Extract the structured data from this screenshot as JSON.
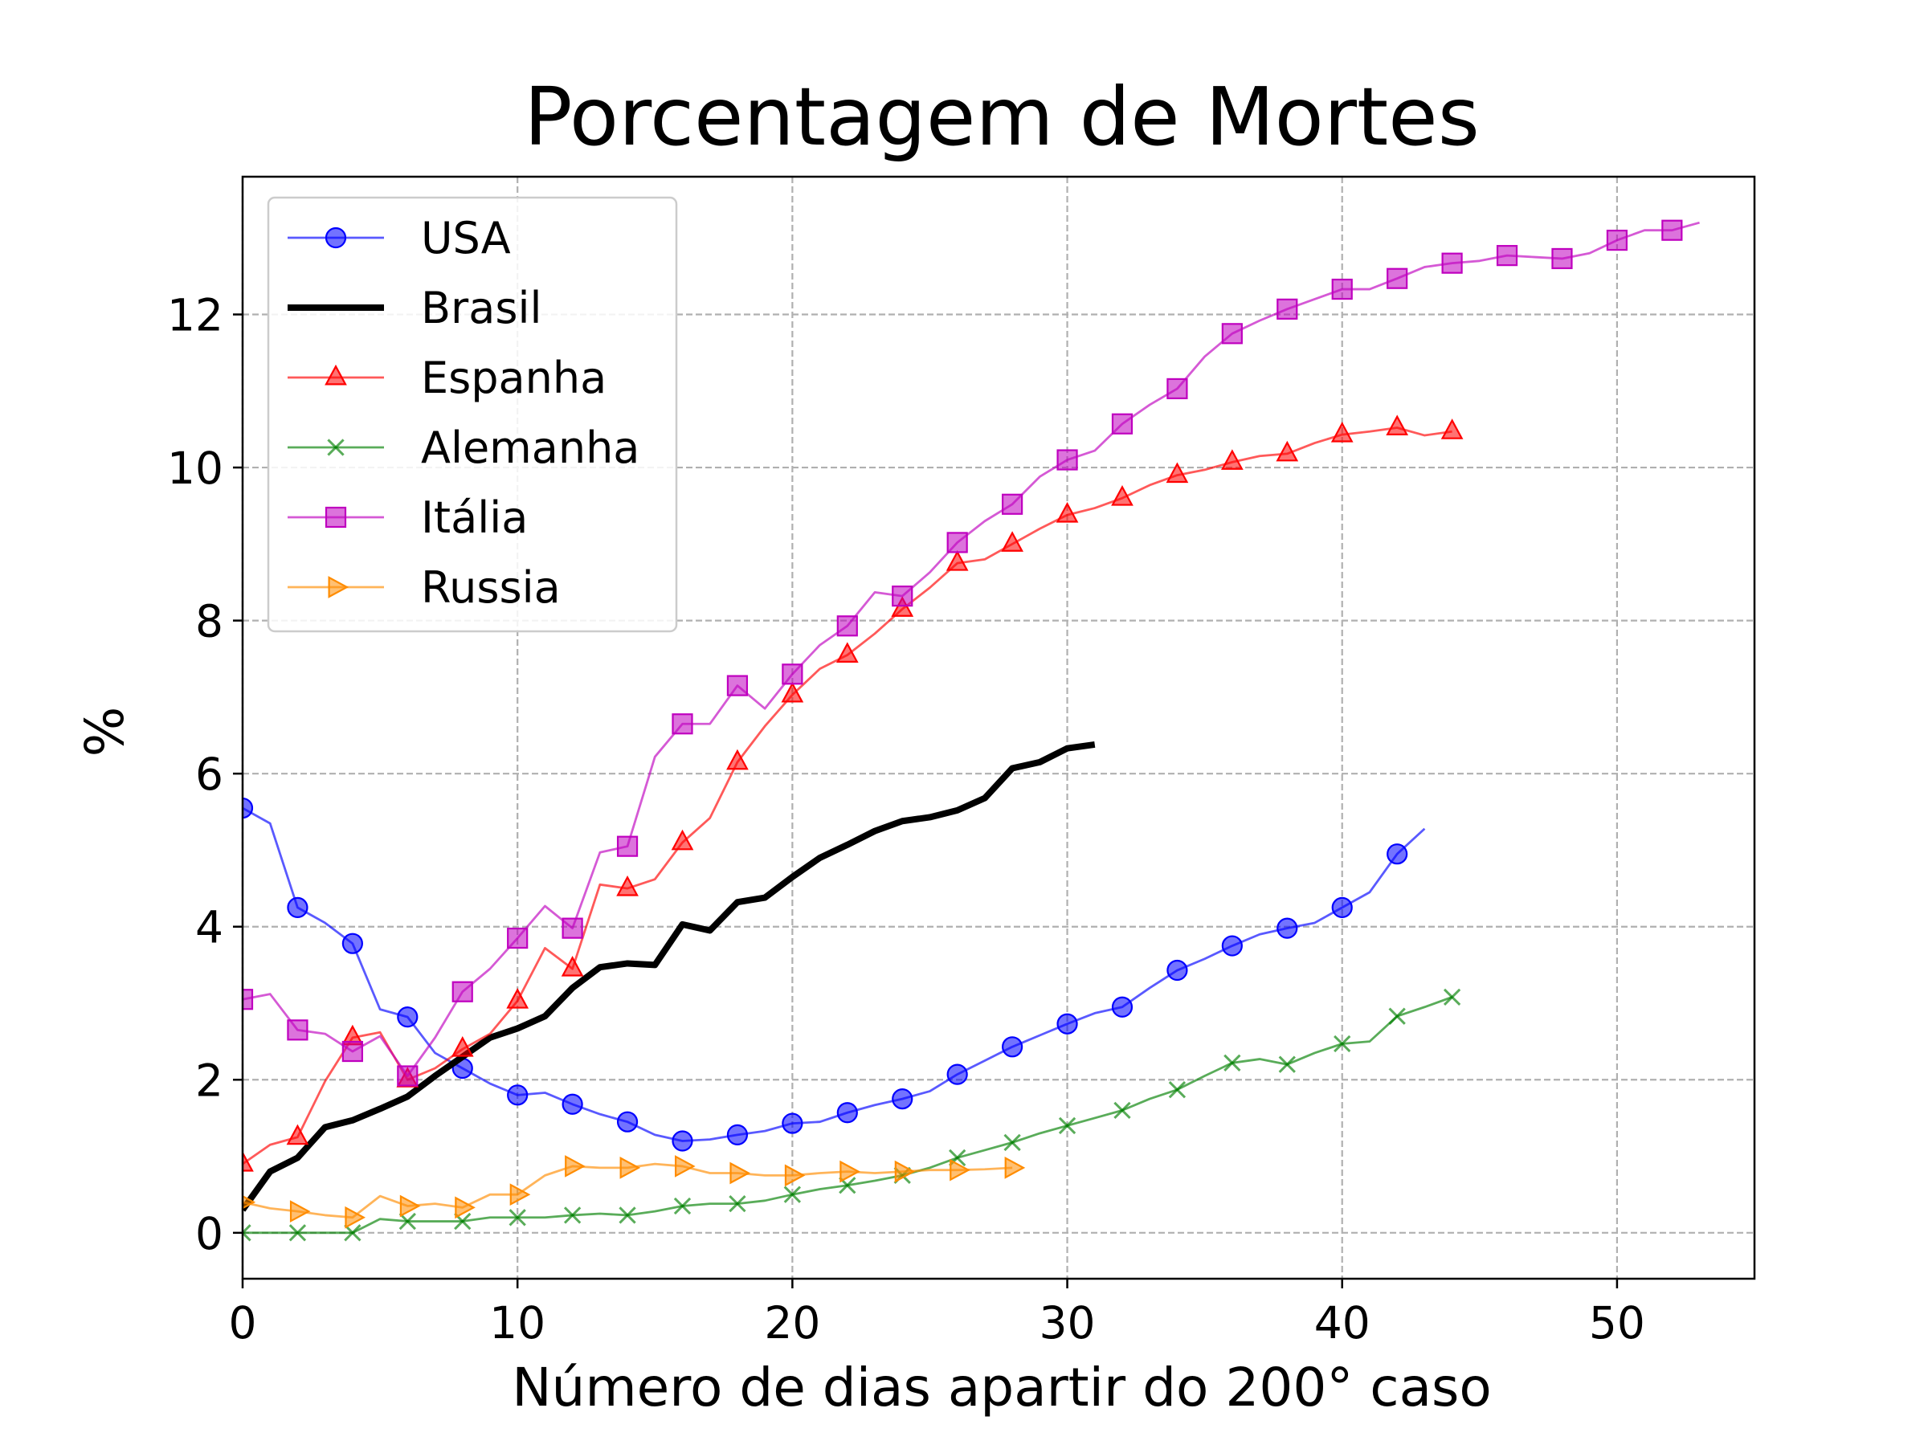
{
  "chart_data": {
    "type": "line",
    "title": "Porcentagem de Mortes",
    "xlabel": "Número de dias apartir do 200° caso",
    "ylabel": "%",
    "xlim": [
      0,
      55
    ],
    "ylim": [
      -0.6,
      13.8
    ],
    "xticks": [
      0,
      10,
      20,
      30,
      40,
      50
    ],
    "yticks": [
      0,
      2,
      4,
      6,
      8,
      10,
      12
    ],
    "grid": true,
    "legend_position": "top-left",
    "series": [
      {
        "name": "USA",
        "color": "#0000ff",
        "marker": "circle",
        "linewidth": "thin",
        "x": [
          0,
          1,
          2,
          3,
          4,
          5,
          6,
          7,
          8,
          9,
          10,
          11,
          12,
          13,
          14,
          15,
          16,
          17,
          18,
          19,
          20,
          21,
          22,
          23,
          24,
          25,
          26,
          27,
          28,
          29,
          30,
          31,
          32,
          33,
          34,
          35,
          36,
          37,
          38,
          39,
          40,
          41,
          42,
          43
        ],
        "y": [
          5.55,
          5.35,
          4.25,
          4.05,
          3.78,
          2.92,
          2.82,
          2.35,
          2.15,
          1.95,
          1.8,
          1.83,
          1.68,
          1.55,
          1.45,
          1.28,
          1.2,
          1.22,
          1.28,
          1.33,
          1.43,
          1.45,
          1.57,
          1.67,
          1.75,
          1.85,
          2.07,
          2.25,
          2.43,
          2.58,
          2.73,
          2.87,
          2.95,
          3.2,
          3.43,
          3.58,
          3.75,
          3.9,
          3.98,
          4.05,
          4.25,
          4.45,
          4.95,
          5.28
        ]
      },
      {
        "name": "Brasil",
        "color": "#000000",
        "marker": "none",
        "linewidth": "thick",
        "x": [
          0,
          1,
          2,
          3,
          4,
          5,
          6,
          7,
          8,
          9,
          10,
          11,
          12,
          13,
          14,
          15,
          16,
          17,
          18,
          19,
          20,
          21,
          22,
          23,
          24,
          25,
          26,
          27,
          28,
          29,
          30,
          31
        ],
        "y": [
          0.3,
          0.8,
          0.98,
          1.38,
          1.47,
          1.62,
          1.78,
          2.05,
          2.3,
          2.55,
          2.67,
          2.83,
          3.2,
          3.47,
          3.52,
          3.5,
          4.03,
          3.95,
          4.32,
          4.38,
          4.65,
          4.9,
          5.07,
          5.25,
          5.38,
          5.43,
          5.52,
          5.68,
          6.07,
          6.15,
          6.33,
          6.38
        ]
      },
      {
        "name": "Espanha",
        "color": "#ff0000",
        "marker": "triangle-up",
        "linewidth": "thin",
        "x": [
          0,
          1,
          2,
          3,
          4,
          5,
          6,
          7,
          8,
          9,
          10,
          11,
          12,
          13,
          14,
          15,
          16,
          17,
          18,
          19,
          20,
          21,
          22,
          23,
          24,
          25,
          26,
          27,
          28,
          29,
          30,
          31,
          32,
          33,
          34,
          35,
          36,
          37,
          38,
          39,
          40,
          41,
          42,
          43,
          44
        ],
        "y": [
          0.9,
          1.15,
          1.25,
          1.98,
          2.55,
          2.62,
          2.0,
          2.15,
          2.4,
          2.6,
          3.03,
          3.72,
          3.45,
          4.55,
          4.5,
          4.62,
          5.1,
          5.42,
          6.15,
          6.62,
          7.03,
          7.37,
          7.55,
          7.83,
          8.15,
          8.43,
          8.75,
          8.8,
          9.0,
          9.2,
          9.38,
          9.47,
          9.6,
          9.77,
          9.9,
          9.97,
          10.07,
          10.15,
          10.18,
          10.32,
          10.43,
          10.47,
          10.52,
          10.42,
          10.47
        ]
      },
      {
        "name": "Alemanha",
        "color": "#008000",
        "marker": "x",
        "linewidth": "thin",
        "x": [
          0,
          1,
          2,
          3,
          4,
          5,
          6,
          7,
          8,
          9,
          10,
          11,
          12,
          13,
          14,
          15,
          16,
          17,
          18,
          19,
          20,
          21,
          22,
          23,
          24,
          25,
          26,
          27,
          28,
          29,
          30,
          31,
          32,
          33,
          34,
          35,
          36,
          37,
          38,
          39,
          40,
          41,
          42,
          43,
          44
        ],
        "y": [
          0.0,
          0.0,
          0.0,
          0.0,
          0.0,
          0.18,
          0.15,
          0.15,
          0.15,
          0.2,
          0.2,
          0.2,
          0.23,
          0.25,
          0.23,
          0.28,
          0.35,
          0.38,
          0.38,
          0.42,
          0.5,
          0.57,
          0.62,
          0.68,
          0.75,
          0.85,
          0.98,
          1.08,
          1.18,
          1.3,
          1.4,
          1.5,
          1.6,
          1.75,
          1.87,
          2.05,
          2.22,
          2.27,
          2.2,
          2.35,
          2.47,
          2.5,
          2.83,
          2.95,
          3.08
        ]
      },
      {
        "name": "Itália",
        "color": "#bf00bf",
        "marker": "square",
        "linewidth": "thin",
        "x": [
          0,
          1,
          2,
          3,
          4,
          5,
          6,
          7,
          8,
          9,
          10,
          11,
          12,
          13,
          14,
          15,
          16,
          17,
          18,
          19,
          20,
          21,
          22,
          23,
          24,
          25,
          26,
          27,
          28,
          29,
          30,
          31,
          32,
          33,
          34,
          35,
          36,
          37,
          38,
          39,
          40,
          41,
          42,
          43,
          44,
          45,
          46,
          47,
          48,
          49,
          50,
          51,
          52,
          53
        ],
        "y": [
          3.05,
          3.12,
          2.65,
          2.6,
          2.37,
          2.57,
          2.05,
          2.55,
          3.15,
          3.45,
          3.85,
          4.27,
          3.98,
          4.97,
          5.05,
          6.22,
          6.65,
          6.65,
          7.15,
          6.85,
          7.3,
          7.68,
          7.93,
          8.37,
          8.32,
          8.63,
          9.02,
          9.3,
          9.52,
          9.88,
          10.1,
          10.22,
          10.57,
          10.82,
          11.03,
          11.45,
          11.75,
          11.92,
          12.07,
          12.2,
          12.33,
          12.33,
          12.47,
          12.62,
          12.67,
          12.7,
          12.77,
          12.75,
          12.73,
          12.8,
          12.97,
          13.1,
          13.1,
          13.2
        ]
      },
      {
        "name": "Russia",
        "color": "#ff8c00",
        "marker": "triangle-right",
        "linewidth": "thin",
        "x": [
          0,
          1,
          2,
          3,
          4,
          5,
          6,
          7,
          8,
          9,
          10,
          11,
          12,
          13,
          14,
          15,
          16,
          17,
          18,
          19,
          20,
          21,
          22,
          23,
          24,
          25,
          26,
          27,
          28
        ],
        "y": [
          0.4,
          0.32,
          0.28,
          0.23,
          0.2,
          0.48,
          0.35,
          0.38,
          0.33,
          0.5,
          0.5,
          0.75,
          0.87,
          0.85,
          0.85,
          0.9,
          0.87,
          0.78,
          0.78,
          0.75,
          0.75,
          0.78,
          0.8,
          0.78,
          0.8,
          0.82,
          0.82,
          0.83,
          0.85
        ]
      }
    ]
  }
}
